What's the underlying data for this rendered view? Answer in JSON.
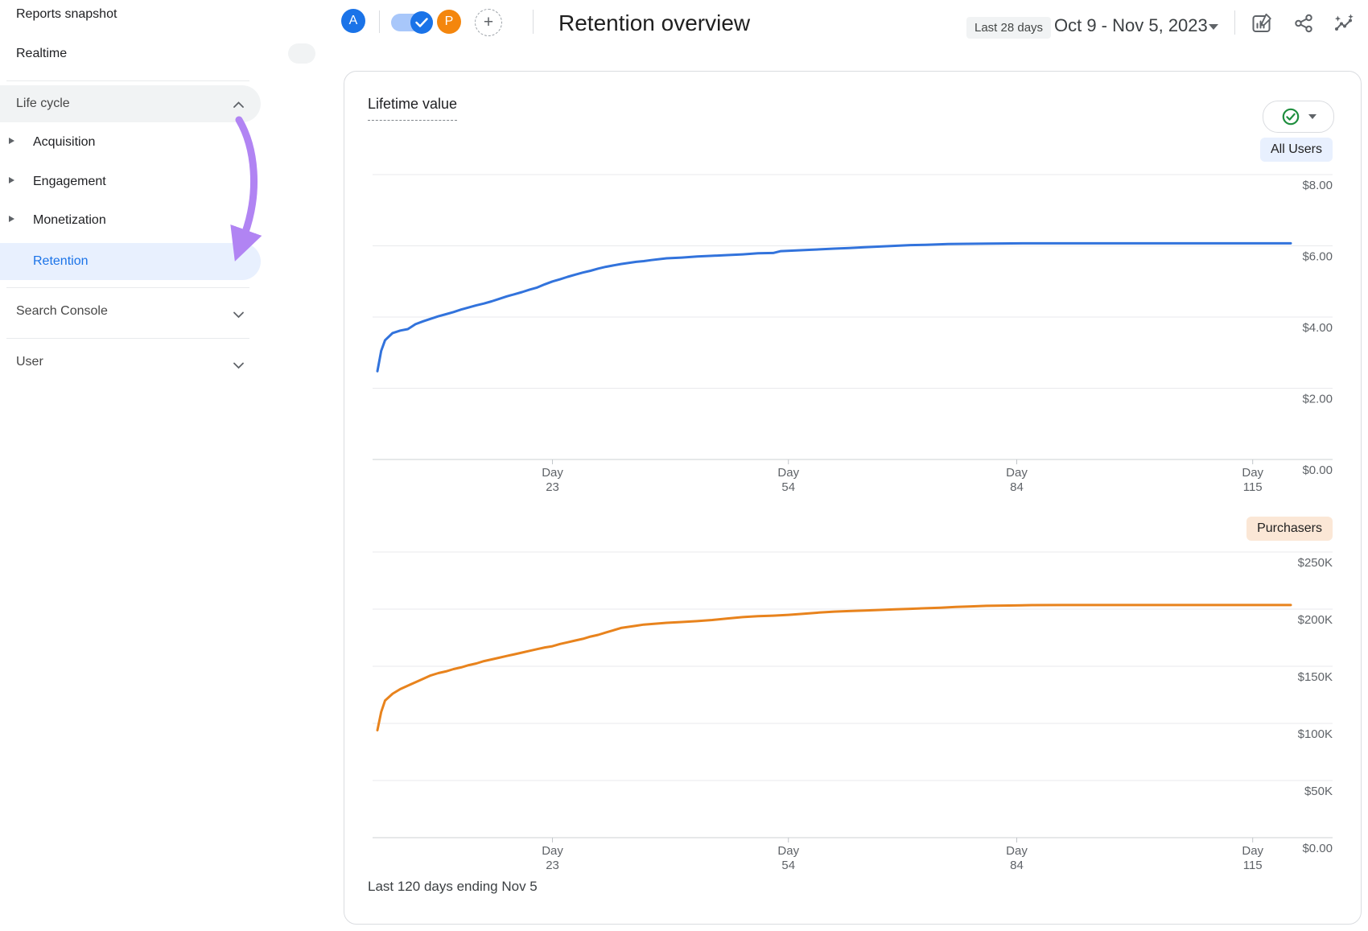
{
  "sidebar": {
    "items": [
      {
        "label": "Reports snapshot"
      },
      {
        "label": "Realtime"
      },
      {
        "label": "Life cycle",
        "type": "section",
        "expanded": true
      },
      {
        "label": "Acquisition",
        "type": "sub"
      },
      {
        "label": "Engagement",
        "type": "sub"
      },
      {
        "label": "Monetization",
        "type": "sub"
      },
      {
        "label": "Retention",
        "type": "sub",
        "selected": true
      },
      {
        "label": "Search Console",
        "type": "section",
        "expanded": false
      },
      {
        "label": "User",
        "type": "section",
        "expanded": false
      }
    ]
  },
  "header": {
    "avatar_a": "A",
    "avatar_p": "P",
    "plus_label": "+",
    "title": "Retention overview",
    "date_range_label": "Last 28 days",
    "date_range": "Oct 9 - Nov 5, 2023",
    "icons": [
      "edit-report-icon",
      "share-icon",
      "insights-icon"
    ]
  },
  "card": {
    "title": "Lifetime value",
    "all_users_chip": "All Users",
    "purchasers_chip": "Purchasers",
    "footnote": "Last 120 days ending Nov 5"
  },
  "colors": {
    "accent_blue": "#1a73e8",
    "series_blue": "#3273dc",
    "series_orange": "#e8831d",
    "toggle_track": "#a8c7fa",
    "avatar_p_orange": "#f4860d",
    "chip_blue_bg": "#e8f0fe",
    "chip_peach_bg": "#fbe7d6",
    "section_pill_bg": "#f1f3f4",
    "selected_nav_bg": "#e8f0fe",
    "annotation_arrow": "#b184f3",
    "check_green": "#1e8e3e",
    "axis_label_gray": "#5f6368"
  },
  "chart_data": [
    {
      "type": "line",
      "title": "Lifetime value",
      "series_name": "All Users",
      "color": "#3273dc",
      "x_tick_prefix": "Day",
      "x_ticks": [
        23,
        54,
        84,
        115
      ],
      "xlim": [
        0,
        120
      ],
      "ylim": [
        0,
        8
      ],
      "y_unit": "USD",
      "y_ticks": [
        {
          "v": 0,
          "label": "$0.00"
        },
        {
          "v": 2,
          "label": "$2.00"
        },
        {
          "v": 4,
          "label": "$4.00"
        },
        {
          "v": 6,
          "label": "$6.00"
        },
        {
          "v": 8,
          "label": "$8.00"
        }
      ],
      "points": [
        [
          0,
          2.48
        ],
        [
          0.5,
          3.05
        ],
        [
          1,
          3.35
        ],
        [
          2,
          3.55
        ],
        [
          3,
          3.62
        ],
        [
          4,
          3.66
        ],
        [
          5,
          3.8
        ],
        [
          6,
          3.88
        ],
        [
          7,
          3.95
        ],
        [
          8,
          4.02
        ],
        [
          9,
          4.08
        ],
        [
          10,
          4.14
        ],
        [
          11,
          4.21
        ],
        [
          12,
          4.27
        ],
        [
          13,
          4.33
        ],
        [
          14,
          4.38
        ],
        [
          15,
          4.44
        ],
        [
          16,
          4.51
        ],
        [
          17,
          4.58
        ],
        [
          18,
          4.64
        ],
        [
          19,
          4.7
        ],
        [
          20,
          4.77
        ],
        [
          21,
          4.83
        ],
        [
          22,
          4.92
        ],
        [
          23,
          5.0
        ],
        [
          24,
          5.06
        ],
        [
          25,
          5.13
        ],
        [
          26,
          5.19
        ],
        [
          27,
          5.25
        ],
        [
          28,
          5.3
        ],
        [
          29,
          5.36
        ],
        [
          30,
          5.41
        ],
        [
          32,
          5.49
        ],
        [
          34,
          5.55
        ],
        [
          35,
          5.57
        ],
        [
          36,
          5.6
        ],
        [
          38,
          5.65
        ],
        [
          40,
          5.67
        ],
        [
          42,
          5.7
        ],
        [
          44,
          5.72
        ],
        [
          46,
          5.74
        ],
        [
          48,
          5.76
        ],
        [
          50,
          5.79
        ],
        [
          52,
          5.8
        ],
        [
          53,
          5.85
        ],
        [
          55,
          5.87
        ],
        [
          57,
          5.89
        ],
        [
          60,
          5.92
        ],
        [
          62,
          5.94
        ],
        [
          64,
          5.96
        ],
        [
          66,
          5.98
        ],
        [
          68,
          6.0
        ],
        [
          70,
          6.02
        ],
        [
          72,
          6.03
        ],
        [
          75,
          6.05
        ],
        [
          80,
          6.06
        ],
        [
          85,
          6.07
        ],
        [
          90,
          6.07
        ],
        [
          95,
          6.07
        ],
        [
          100,
          6.07
        ],
        [
          105,
          6.07
        ],
        [
          110,
          6.07
        ],
        [
          115,
          6.07
        ],
        [
          120,
          6.07
        ]
      ]
    },
    {
      "type": "line",
      "title": "Lifetime value",
      "series_name": "Purchasers",
      "color": "#e8831d",
      "x_tick_prefix": "Day",
      "x_ticks": [
        23,
        54,
        84,
        115
      ],
      "xlim": [
        0,
        120
      ],
      "ylim": [
        0,
        250
      ],
      "y_unit": "USD_thousands",
      "y_ticks": [
        {
          "v": 0,
          "label": "$0.00"
        },
        {
          "v": 50,
          "label": "$50K"
        },
        {
          "v": 100,
          "label": "$100K"
        },
        {
          "v": 150,
          "label": "$150K"
        },
        {
          "v": 200,
          "label": "$200K"
        },
        {
          "v": 250,
          "label": "$250K"
        }
      ],
      "points": [
        [
          0,
          94
        ],
        [
          0.5,
          110
        ],
        [
          1,
          120
        ],
        [
          2,
          126
        ],
        [
          3,
          130
        ],
        [
          4,
          133
        ],
        [
          5,
          136
        ],
        [
          6,
          139
        ],
        [
          7,
          142
        ],
        [
          8,
          144
        ],
        [
          9,
          145.5
        ],
        [
          10,
          147.5
        ],
        [
          11,
          149
        ],
        [
          12,
          151
        ],
        [
          13,
          152.5
        ],
        [
          14,
          154.5
        ],
        [
          15,
          156
        ],
        [
          16,
          157.5
        ],
        [
          17,
          159
        ],
        [
          18,
          160.5
        ],
        [
          19,
          162
        ],
        [
          20,
          163.5
        ],
        [
          21,
          165
        ],
        [
          22,
          166.5
        ],
        [
          23,
          167.5
        ],
        [
          24,
          169.5
        ],
        [
          25,
          171
        ],
        [
          26,
          172.5
        ],
        [
          27,
          174
        ],
        [
          28,
          176
        ],
        [
          29,
          177.5
        ],
        [
          30,
          179.5
        ],
        [
          31,
          181.5
        ],
        [
          32,
          183.5
        ],
        [
          33,
          184.5
        ],
        [
          34,
          185.5
        ],
        [
          35,
          186.5
        ],
        [
          36,
          187
        ],
        [
          37,
          187.5
        ],
        [
          38,
          188
        ],
        [
          40,
          188.7
        ],
        [
          42,
          189.5
        ],
        [
          44,
          190.5
        ],
        [
          46,
          191.8
        ],
        [
          48,
          193
        ],
        [
          50,
          193.8
        ],
        [
          52,
          194.3
        ],
        [
          54,
          195
        ],
        [
          56,
          196
        ],
        [
          58,
          197
        ],
        [
          60,
          197.8
        ],
        [
          62,
          198.3
        ],
        [
          64,
          198.8
        ],
        [
          66,
          199.3
        ],
        [
          68,
          199.8
        ],
        [
          70,
          200.3
        ],
        [
          72,
          200.8
        ],
        [
          74,
          201.3
        ],
        [
          76,
          201.9
        ],
        [
          78,
          202.4
        ],
        [
          80,
          202.9
        ],
        [
          83,
          203.2
        ],
        [
          86,
          203.5
        ],
        [
          90,
          203.6
        ],
        [
          100,
          203.6
        ],
        [
          110,
          203.6
        ],
        [
          120,
          203.6
        ]
      ]
    }
  ]
}
